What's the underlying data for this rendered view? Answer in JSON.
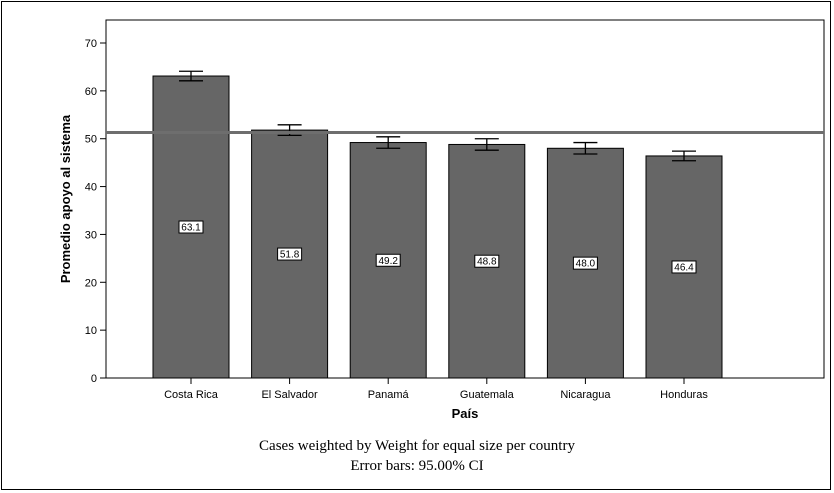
{
  "chart_data": {
    "type": "bar",
    "xlabel": "País",
    "ylabel": "Promedio apoyo al sistema",
    "ylim": [
      0,
      70
    ],
    "yticks": [
      0,
      10,
      20,
      30,
      40,
      50,
      60,
      70
    ],
    "categories": [
      "Costa Rica",
      "El Salvador",
      "Panamá",
      "Guatemala",
      "Nicaragua",
      "Honduras"
    ],
    "values": [
      63.1,
      51.8,
      49.2,
      48.8,
      48.0,
      46.4
    ],
    "value_labels": [
      "63.1",
      "51.8",
      "49.2",
      "48.8",
      "48.0",
      "46.4"
    ],
    "error_bars": [
      {
        "low": 62.1,
        "high": 64.1
      },
      {
        "low": 50.7,
        "high": 52.9
      },
      {
        "low": 48.0,
        "high": 50.4
      },
      {
        "low": 47.6,
        "high": 50.0
      },
      {
        "low": 46.8,
        "high": 49.2
      },
      {
        "low": 45.4,
        "high": 47.4
      }
    ],
    "reference_line": 51.3,
    "grid": false,
    "bar_color": "#666666",
    "reference_line_color": "#6e6e6e"
  },
  "footnotes": {
    "line1": "Cases weighted by Weight for equal size per country",
    "line2": "Error bars: 95.00% CI"
  }
}
